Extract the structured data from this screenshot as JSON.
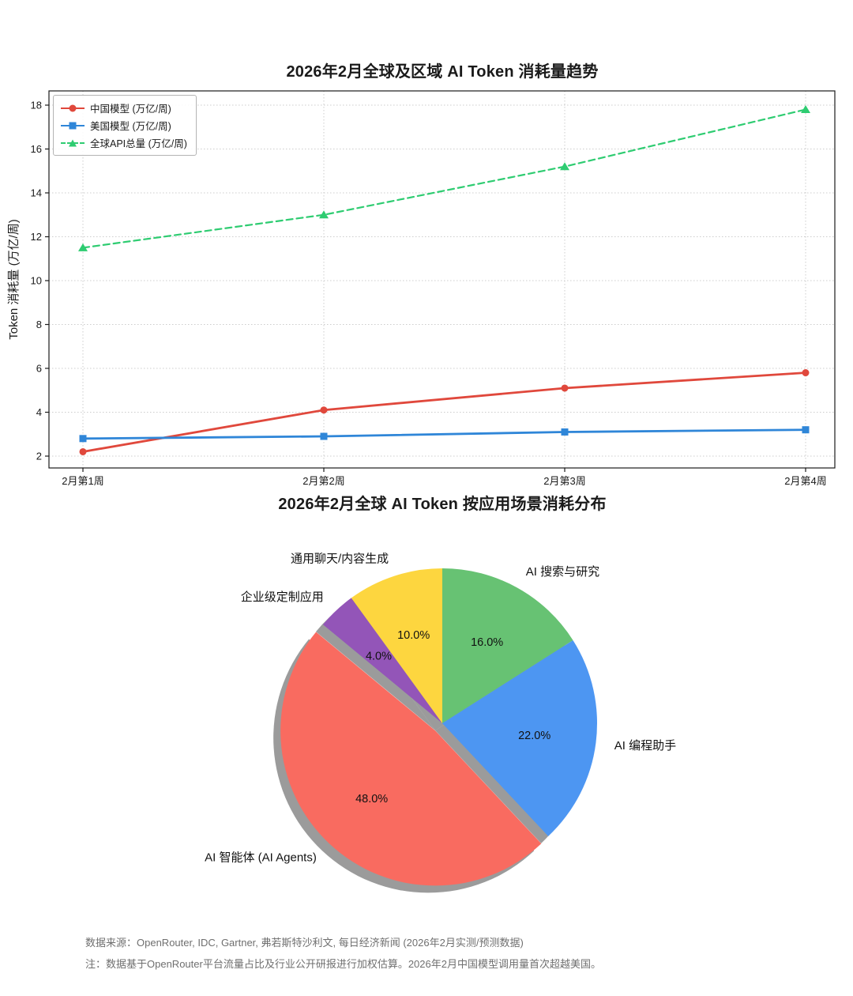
{
  "figure": {
    "background": "#ffffff",
    "text_color": "#1a1a1a",
    "grid_color": "#cccccc",
    "note_color": "#6f6f6f"
  },
  "chart_data": [
    {
      "type": "line",
      "title": "2026年2月全球及区域 AI Token 消耗量趋势",
      "xlabel": "",
      "ylabel": "Token 消耗量 (万亿/周)",
      "categories": [
        "2月第1周",
        "2月第2周",
        "2月第3周",
        "2月第4周"
      ],
      "series": [
        {
          "name": "中国模型 (万亿/周)",
          "values": [
            2.2,
            4.1,
            5.1,
            5.8
          ],
          "color": "#e0483c",
          "marker": "circle",
          "dash": null
        },
        {
          "name": "美国模型 (万亿/周)",
          "values": [
            2.8,
            2.9,
            3.1,
            3.2
          ],
          "color": "#2f86d8",
          "marker": "square",
          "dash": null
        },
        {
          "name": "全球API总量 (万亿/周)",
          "values": [
            11.5,
            13.0,
            15.2,
            17.8
          ],
          "color": "#2ecc71",
          "marker": "triangle",
          "dash": "8,5"
        }
      ],
      "y_ticks": [
        2,
        4,
        6,
        8,
        10,
        12,
        14,
        16,
        18
      ],
      "ylim": [
        1.4,
        18.7
      ],
      "grid": true,
      "legend_position": "upper-left"
    },
    {
      "type": "pie",
      "title": "2026年2月全球 AI Token 按应用场景消耗分布",
      "start_angle": 90,
      "clockwise": true,
      "shadow": true,
      "slices": [
        {
          "label": "AI 搜索与研究",
          "value": 16.0,
          "pct_label": "16.0%",
          "color": "#67c273",
          "explode": 0
        },
        {
          "label": "AI 编程助手",
          "value": 22.0,
          "pct_label": "22.0%",
          "color": "#4d96f2",
          "explode": 0
        },
        {
          "label": "AI 智能体 (AI Agents)",
          "value": 48.0,
          "pct_label": "48.0%",
          "color": "#f96b60",
          "explode": 0.066
        },
        {
          "label": "企业级定制应用",
          "value": 4.0,
          "pct_label": "4.0%",
          "color": "#9355b8",
          "explode": 0
        },
        {
          "label": "通用聊天/内容生成",
          "value": 10.0,
          "pct_label": "10.0%",
          "color": "#fdd63f",
          "explode": 0
        }
      ]
    }
  ],
  "notes": {
    "source": "数据来源：OpenRouter, IDC, Gartner, 弗若斯特沙利文, 每日经济新闻 (2026年2月实测/预测数据)",
    "remark": "注：数据基于OpenRouter平台流量占比及行业公开研报进行加权估算。2026年2月中国模型调用量首次超越美国。"
  }
}
